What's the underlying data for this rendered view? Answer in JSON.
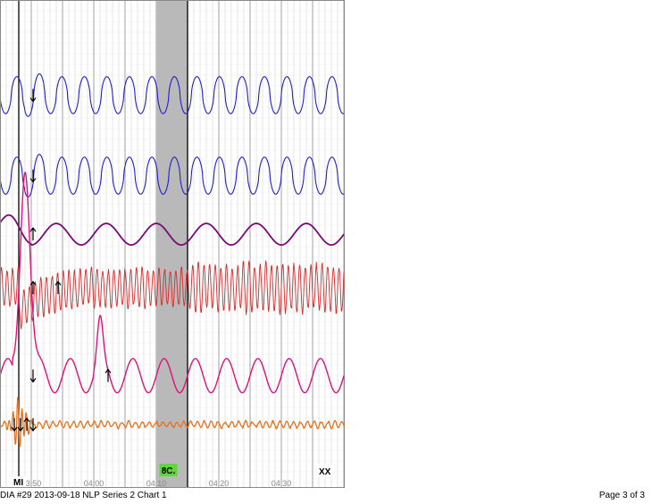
{
  "footer": {
    "left": "DIA #29 2013-09-18 NLP Series 2 Chart 1",
    "right": "Page 3 of 3"
  },
  "colors": {
    "pneumo": "#1f1fd0",
    "cardio_slow": "#7a0a78",
    "cardio": "#d62a2a",
    "eda": "#e0107a",
    "motion": "#e8701a",
    "grid_major": "#999999",
    "grid_minor": "#d3d3d3",
    "question_band": "#b9b9b9",
    "badge_bg": "#5ed63c"
  },
  "chart_data": {
    "type": "line",
    "title": "",
    "xlabel": "",
    "ylabel": "",
    "x_unit": "mm:ss",
    "xlim": [
      "03:45",
      "04:40"
    ],
    "x_ticks": [
      "03:50",
      "04:00",
      "04:10",
      "04:20",
      "04:30"
    ],
    "grid": true,
    "question_band": {
      "start": "04:10",
      "end": "04:15",
      "label": "8C."
    },
    "event_markers": [
      {
        "time": "03:45",
        "label": ""
      },
      {
        "time": "03:48",
        "label": "MI"
      },
      {
        "time": "04:15",
        "label": ""
      }
    ],
    "end_label": {
      "time": "04:36",
      "label": "XX"
    },
    "series": [
      {
        "name": "",
        "role": "upper-pneumo",
        "color": "#1f1fd0",
        "baseline": 0.195,
        "amplitude": 0.038,
        "cycle_s": 3.6
      },
      {
        "name": "",
        "role": "lower-pneumo",
        "color": "#1f1fd0",
        "baseline": 0.36,
        "amplitude": 0.038,
        "cycle_s": 3.6
      },
      {
        "name": "",
        "role": "cardio-mean",
        "color": "#7a0a78",
        "baseline": 0.48,
        "amplitude": 0.022,
        "cycle_s": 8.0
      },
      {
        "name": "",
        "role": "cardio",
        "color": "#d62a2a",
        "baseline": 0.59,
        "amplitude": 0.045,
        "cycle_s": 0.9
      },
      {
        "name": "",
        "role": "eda",
        "color": "#e0107a",
        "baseline": 0.77,
        "amplitude": 0.035,
        "cycle_s": 5.0
      },
      {
        "name": "",
        "role": "motion",
        "color": "#e8701a",
        "baseline": 0.87,
        "amplitude": 0.006,
        "cycle_s": 1.1
      }
    ],
    "annotations": [
      {
        "time": "03:50",
        "series": "upper-pneumo",
        "direction": "down"
      },
      {
        "time": "03:50",
        "series": "lower-pneumo",
        "direction": "down"
      },
      {
        "time": "03:50",
        "series": "cardio-mean",
        "direction": "up"
      },
      {
        "time": "03:50",
        "series": "cardio",
        "direction": "up"
      },
      {
        "time": "03:54",
        "series": "cardio",
        "direction": "up"
      },
      {
        "time": "03:50",
        "series": "eda",
        "direction": "down"
      },
      {
        "time": "04:02",
        "series": "eda",
        "direction": "up"
      },
      {
        "time": "03:47",
        "series": "motion",
        "direction": "down"
      },
      {
        "time": "03:48",
        "series": "motion",
        "direction": "down"
      },
      {
        "time": "03:49",
        "series": "motion",
        "direction": "up"
      },
      {
        "time": "03:50",
        "series": "motion",
        "direction": "down"
      }
    ]
  }
}
